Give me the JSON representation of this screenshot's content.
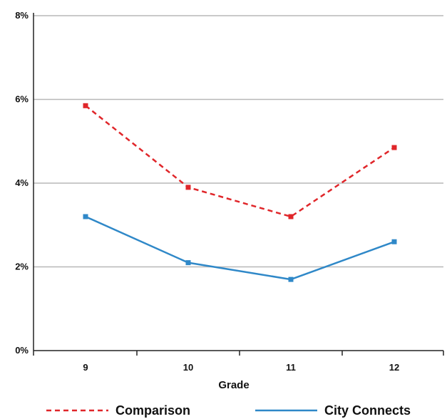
{
  "chart_data": {
    "type": "line",
    "title": "",
    "xlabel": "Grade",
    "ylabel": "",
    "categories": [
      "9",
      "10",
      "11",
      "12"
    ],
    "ylim": [
      0,
      8
    ],
    "yticks": [
      "0%",
      "2%",
      "4%",
      "6%",
      "8%"
    ],
    "grid": "horizontal",
    "legend_position": "bottom",
    "series": [
      {
        "name": "Comparison",
        "values": [
          5.85,
          3.9,
          3.2,
          4.85
        ],
        "color": "#e0262a",
        "style": "dashed"
      },
      {
        "name": "City Connects",
        "values": [
          3.2,
          2.1,
          1.7,
          2.6
        ],
        "color": "#2f88c8",
        "style": "solid"
      }
    ]
  }
}
